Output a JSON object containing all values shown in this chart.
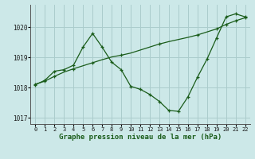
{
  "xlabel": "Graphe pression niveau de la mer (hPa)",
  "bg_color": "#cce8e8",
  "grid_color": "#aacccc",
  "line_color": "#1a5c1a",
  "x": [
    0,
    1,
    2,
    3,
    4,
    5,
    6,
    7,
    8,
    9,
    10,
    11,
    12,
    13,
    14,
    15,
    16,
    17,
    18,
    19,
    20,
    21,
    22
  ],
  "y_jagged": [
    1018.1,
    1018.25,
    1018.55,
    1018.6,
    1018.75,
    1019.35,
    1019.8,
    1019.35,
    1018.85,
    1018.6,
    1018.05,
    1017.95,
    1017.78,
    1017.55,
    1017.25,
    1017.22,
    1017.7,
    1018.35,
    1018.95,
    1019.65,
    1020.35,
    1020.45,
    1020.35
  ],
  "x_smooth": [
    0,
    1,
    2,
    3,
    4,
    5,
    6,
    7,
    8,
    9,
    10,
    11,
    12,
    13,
    14,
    15,
    16,
    17,
    18,
    19,
    20,
    21,
    22
  ],
  "y_smooth": [
    1018.12,
    1018.22,
    1018.38,
    1018.52,
    1018.63,
    1018.73,
    1018.83,
    1018.93,
    1019.02,
    1019.08,
    1019.15,
    1019.25,
    1019.35,
    1019.45,
    1019.53,
    1019.6,
    1019.67,
    1019.75,
    1019.85,
    1019.95,
    1020.1,
    1020.22,
    1020.32
  ],
  "ylim": [
    1016.8,
    1020.75
  ],
  "yticks": [
    1017,
    1018,
    1019,
    1020
  ],
  "xticks": [
    0,
    1,
    2,
    3,
    4,
    5,
    6,
    7,
    8,
    9,
    10,
    11,
    12,
    13,
    14,
    15,
    16,
    17,
    18,
    19,
    20,
    21,
    22
  ],
  "smooth_marker_x": [
    0,
    1,
    2,
    4,
    6,
    9,
    13,
    17,
    19,
    20,
    21,
    22
  ],
  "smooth_marker_y": [
    1018.12,
    1018.22,
    1018.38,
    1018.63,
    1018.83,
    1019.08,
    1019.45,
    1019.75,
    1019.95,
    1020.1,
    1020.22,
    1020.32
  ]
}
